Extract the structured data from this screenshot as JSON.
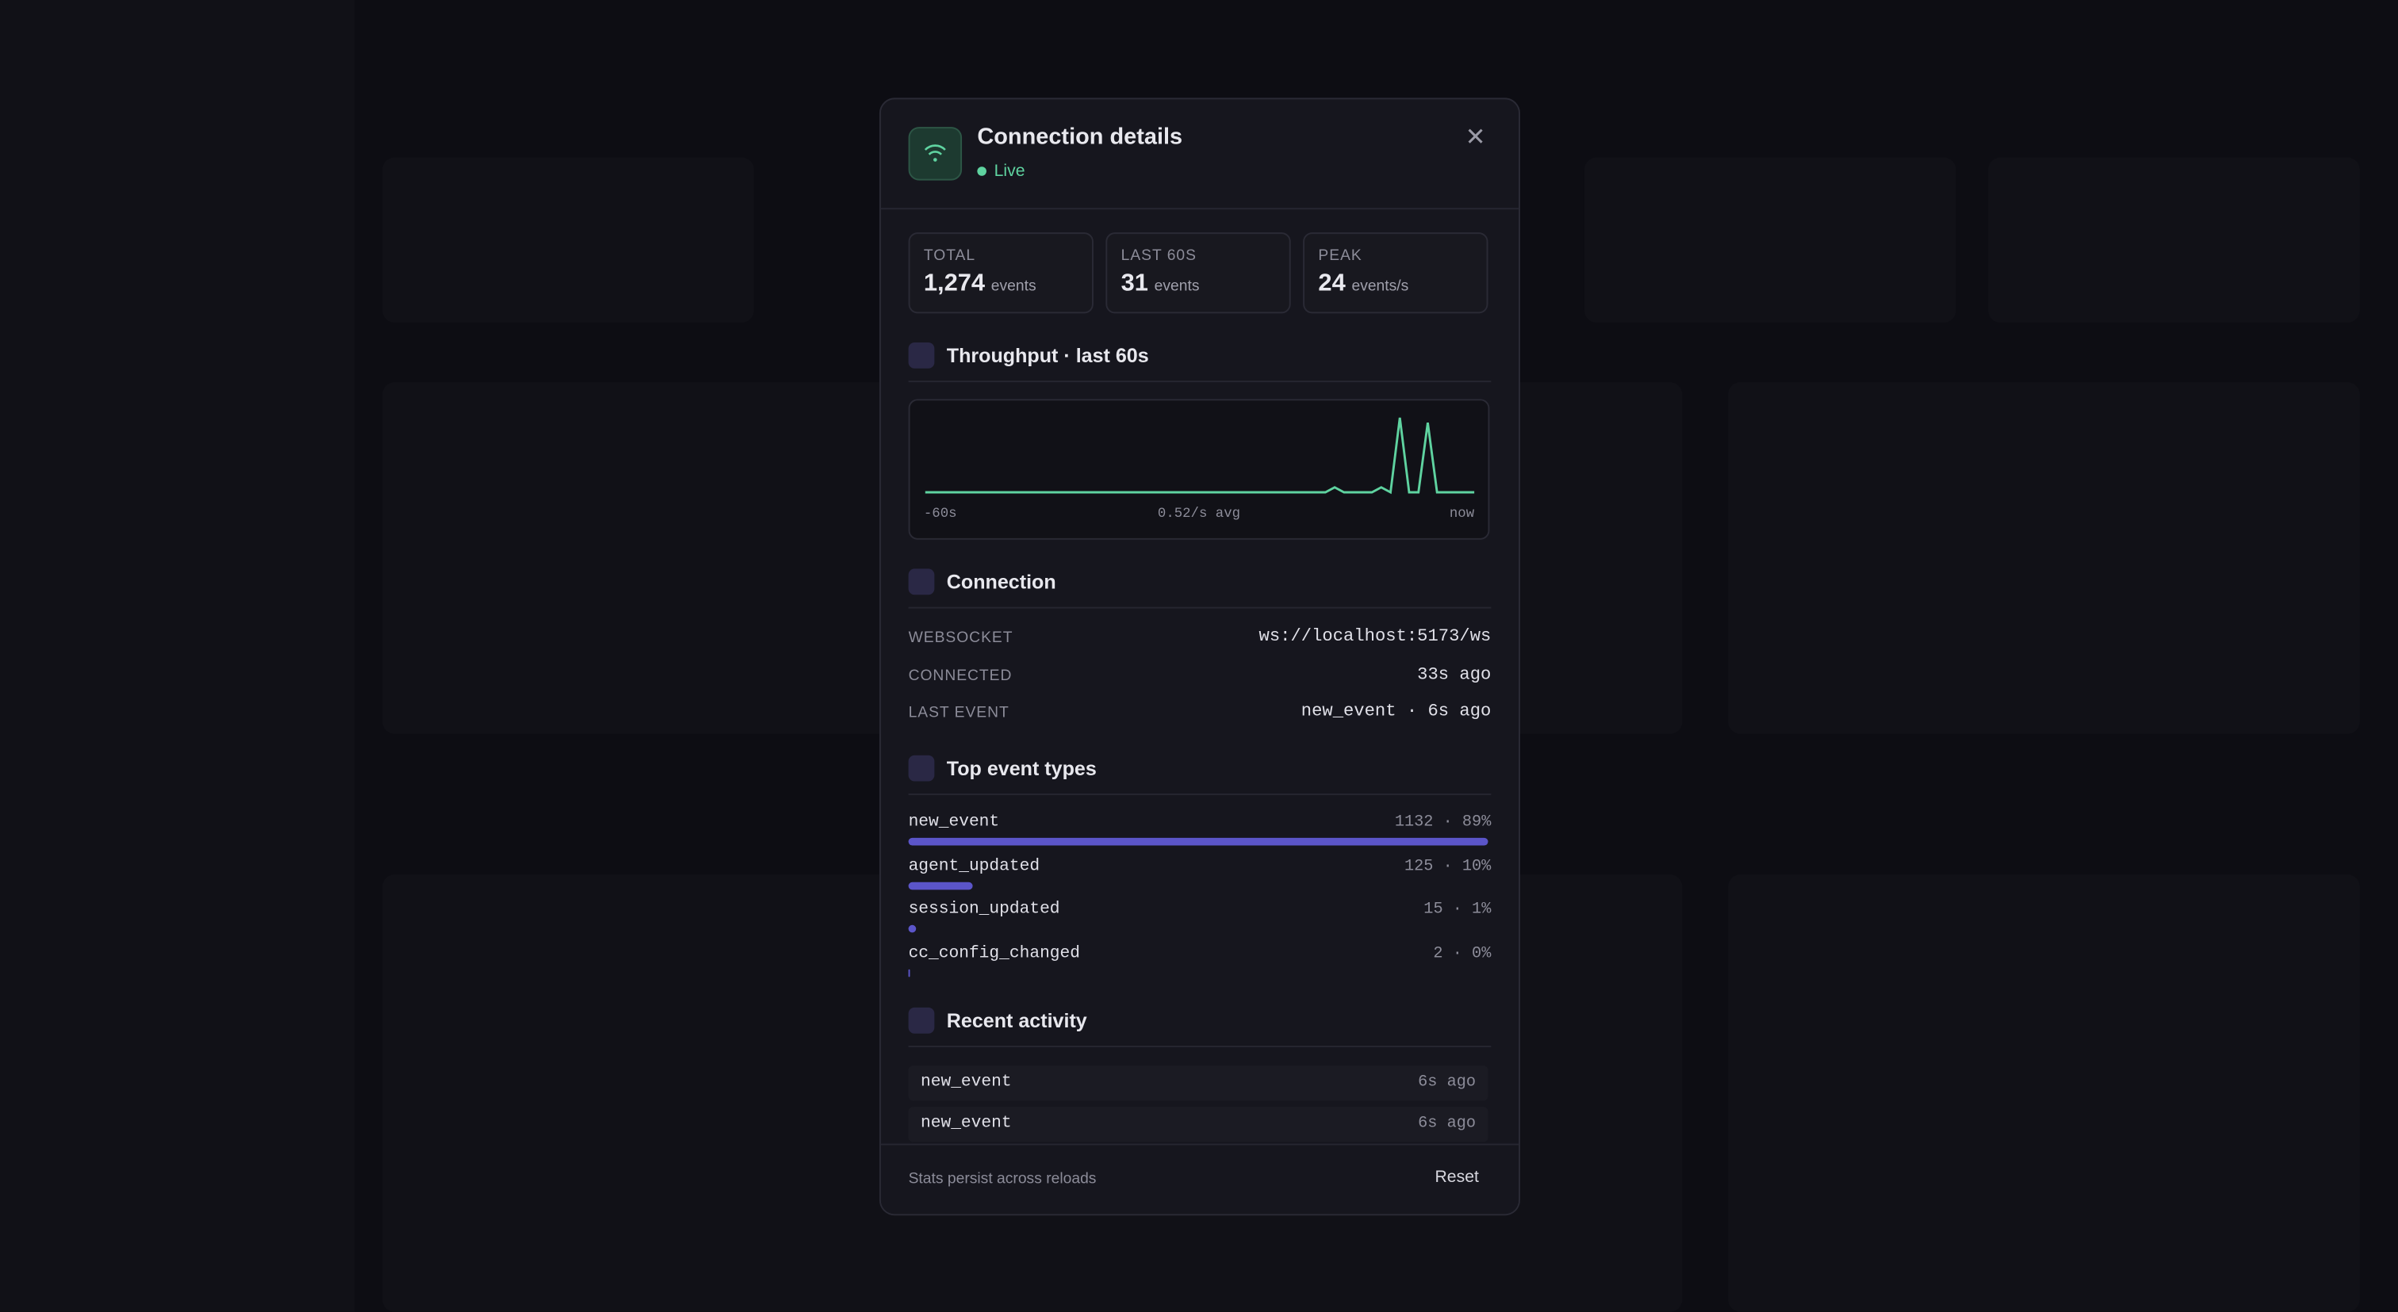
{
  "modal": {
    "title": "Connection details",
    "status": "Live",
    "stats": [
      {
        "label": "TOTAL",
        "value": "1,274",
        "unit": "events"
      },
      {
        "label": "LAST 60S",
        "value": "31",
        "unit": "events"
      },
      {
        "label": "PEAK",
        "value": "24",
        "unit": "events/s"
      }
    ],
    "throughput": {
      "title": "Throughput · last 60s",
      "chart_data": {
        "type": "line",
        "color": "#5fd3a0",
        "ylim": [
          0,
          16
        ],
        "values": [
          0,
          0,
          0,
          0,
          0,
          0,
          0,
          0,
          0,
          0,
          0,
          0,
          0,
          0,
          0,
          0,
          0,
          0,
          0,
          0,
          0,
          0,
          0,
          0,
          0,
          0,
          0,
          0,
          0,
          0,
          0,
          0,
          0,
          0,
          0,
          0,
          0,
          0,
          0,
          0,
          0,
          0,
          0,
          0,
          1,
          0,
          0,
          0,
          0,
          1,
          0,
          15,
          0,
          0,
          14,
          0,
          0,
          0,
          0,
          0
        ],
        "x_start": "-60s",
        "x_mid": "0.52/s avg",
        "x_end": "now"
      }
    },
    "connection": {
      "title": "Connection",
      "rows": [
        {
          "label": "WEBSOCKET",
          "value": "ws://localhost:5173/ws"
        },
        {
          "label": "CONNECTED",
          "value": "33s ago"
        },
        {
          "label": "LAST EVENT",
          "value": "new_event · 6s ago"
        }
      ]
    },
    "top_events": {
      "title": "Top event types",
      "color": "#5b55c9",
      "rows": [
        {
          "name": "new_event",
          "stat": "1132 · 89%",
          "count": 1132
        },
        {
          "name": "agent_updated",
          "stat": "125 · 10%",
          "count": 125
        },
        {
          "name": "session_updated",
          "stat": "15 · 1%",
          "count": 15
        },
        {
          "name": "cc_config_changed",
          "stat": "2 · 0%",
          "count": 2
        }
      ]
    },
    "recent": {
      "title": "Recent activity",
      "rows": [
        {
          "name": "new_event",
          "time": "6s ago"
        },
        {
          "name": "new_event",
          "time": "6s ago"
        }
      ]
    },
    "footer": {
      "note": "Stats persist across reloads",
      "reset": "Reset"
    }
  }
}
